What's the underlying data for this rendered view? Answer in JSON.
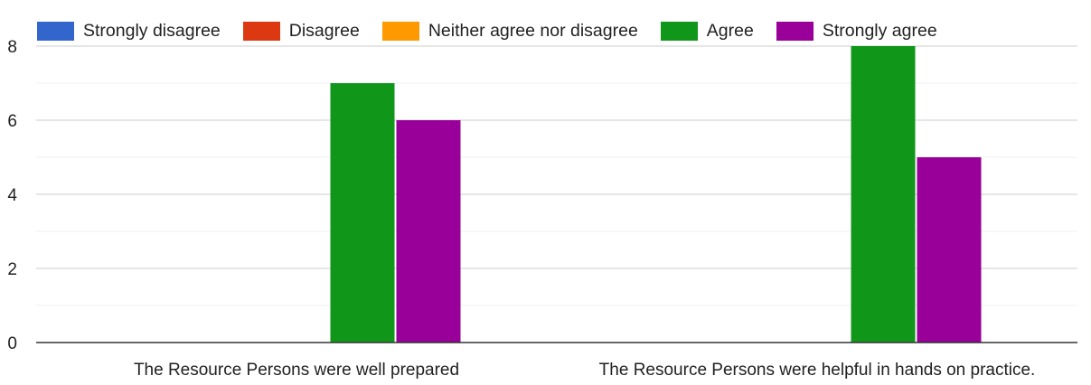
{
  "chart_data": {
    "type": "bar",
    "categories": [
      "The Resource Persons were well prepared",
      "The Resource Persons were helpful in hands on practice."
    ],
    "series": [
      {
        "name": "Strongly disagree",
        "color": "#3366cc",
        "values": [
          0,
          0
        ]
      },
      {
        "name": "Disagree",
        "color": "#dc3912",
        "values": [
          0,
          0
        ]
      },
      {
        "name": "Neither agree nor disagree",
        "color": "#ff9900",
        "values": [
          0,
          0
        ]
      },
      {
        "name": "Agree",
        "color": "#109618",
        "values": [
          7,
          8
        ]
      },
      {
        "name": "Strongly agree",
        "color": "#990099",
        "values": [
          6,
          5
        ]
      }
    ],
    "ylim": [
      0,
      8
    ],
    "yticks": [
      0,
      2,
      4,
      6,
      8
    ],
    "minor_gridlines": [
      1,
      3,
      5,
      7
    ],
    "legend_position": "top",
    "grid": true
  }
}
